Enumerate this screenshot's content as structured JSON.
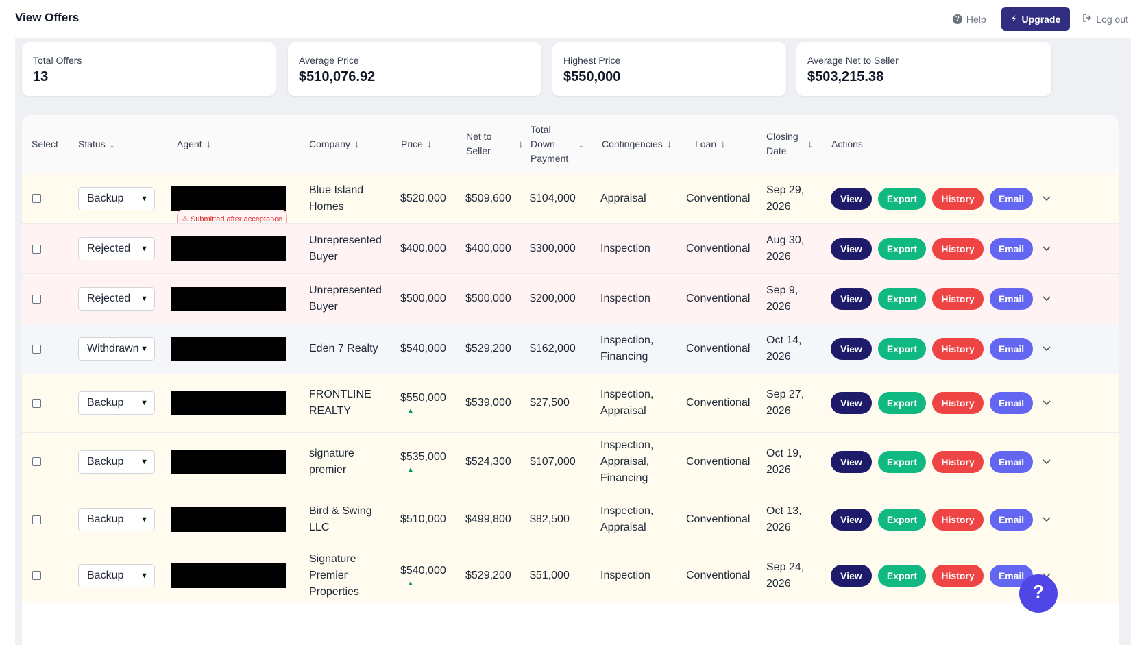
{
  "header": {
    "title": "View Offers",
    "help_label": "Help",
    "upgrade_label": "Upgrade",
    "logout_label": "Log out"
  },
  "stats": [
    {
      "label": "Total Offers",
      "value": "13"
    },
    {
      "label": "Average Price",
      "value": "$510,076.92"
    },
    {
      "label": "Highest Price",
      "value": "$550,000"
    },
    {
      "label": "Average Net to Seller",
      "value": "$503,215.38"
    }
  ],
  "table": {
    "columns": {
      "select": "Select",
      "status": "Status",
      "agent": "Agent",
      "company": "Company",
      "price": "Price",
      "net": "Net to Seller",
      "down": "Total Down Payment",
      "contingencies": "Contingencies",
      "loan": "Loan",
      "closing": "Closing Date",
      "actions": "Actions"
    },
    "sort_arrow": "↓",
    "action_labels": {
      "view": "View",
      "export": "Export",
      "history": "History",
      "email": "Email"
    },
    "rows": [
      {
        "status": "Backup",
        "company": "Blue Island Homes",
        "price": "$520,000",
        "net": "$509,600",
        "down": "$104,000",
        "contingencies": "Appraisal",
        "loan": "Conventional",
        "closing": "Sep 29, 2026",
        "badge": "Submitted after acceptance"
      },
      {
        "status": "Rejected",
        "company": "Unrepresented Buyer",
        "price": "$400,000",
        "net": "$400,000",
        "down": "$300,000",
        "contingencies": "Inspection",
        "loan": "Conventional",
        "closing": "Aug 30, 2026"
      },
      {
        "status": "Rejected",
        "company": "Unrepresented Buyer",
        "price": "$500,000",
        "net": "$500,000",
        "down": "$200,000",
        "contingencies": "Inspection",
        "loan": "Conventional",
        "closing": "Sep 9, 2026"
      },
      {
        "status": "Withdrawn",
        "company": "Eden 7 Realty",
        "price": "$540,000",
        "net": "$529,200",
        "down": "$162,000",
        "contingencies": "Inspection, Financing",
        "loan": "Conventional",
        "closing": "Oct 14, 2026"
      },
      {
        "status": "Backup",
        "company": "FRONTLINE REALTY",
        "price": "$550,000",
        "price_up": true,
        "net": "$539,000",
        "down": "$27,500",
        "contingencies": "Inspection, Appraisal",
        "loan": "Conventional",
        "closing": "Sep 27, 2026"
      },
      {
        "status": "Backup",
        "company": "signature premier",
        "price": "$535,000",
        "price_up": true,
        "net": "$524,300",
        "down": "$107,000",
        "contingencies": "Inspection, Appraisal, Financing",
        "loan": "Conventional",
        "closing": "Oct 19, 2026"
      },
      {
        "status": "Backup",
        "company": "Bird & Swing LLC",
        "price": "$510,000",
        "net": "$499,800",
        "down": "$82,500",
        "contingencies": "Inspection, Appraisal",
        "loan": "Conventional",
        "closing": "Oct 13, 2026"
      },
      {
        "status": "Backup",
        "company": "Signature Premier Properties",
        "price": "$540,000",
        "price_up": true,
        "net": "$529,200",
        "down": "$51,000",
        "contingencies": "Inspection",
        "loan": "Conventional",
        "closing": "Sep 24, 2026"
      }
    ]
  },
  "help_fab": "?",
  "colors": {
    "primary": "#312e81",
    "view": "#1e1b6b",
    "export": "#10b981",
    "history": "#ef4444",
    "email": "#6366f1"
  }
}
